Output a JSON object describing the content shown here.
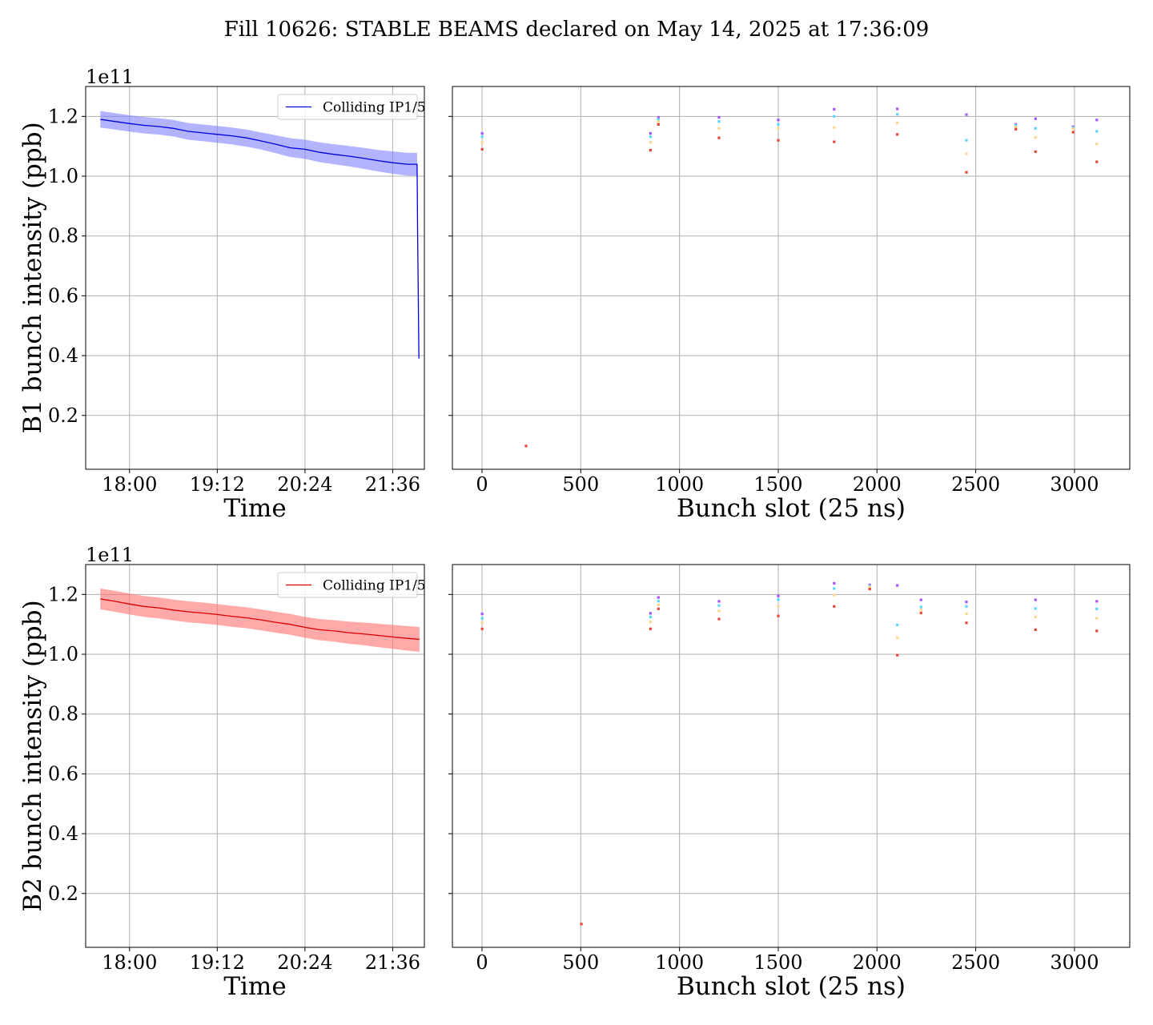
{
  "title": "Fill 10626: STABLE BEAMS declared on May 14, 2025 at 17:36:09",
  "colors": {
    "b1": "#0000dd",
    "b1_band": "#8080ff",
    "b2": "#dd0000",
    "b2_band": "#ff7070",
    "grid": "#b0b0b0"
  },
  "chart_data": [
    {
      "type": "line",
      "panel": "B1 vs time",
      "ylabel": "B1 bunch intensity (ppb)",
      "xlabel": "Time",
      "y_offset_label": "1e11",
      "y_scale": 100000000000.0,
      "grid": true,
      "legend_position": "upper-right",
      "x_unit": "minutes after 17:00",
      "xlim": [
        24,
        302
      ],
      "ylim": [
        0.02,
        1.3
      ],
      "x_ticks": [
        60,
        132,
        204,
        276
      ],
      "x_tick_labels": [
        "18:00",
        "19:12",
        "20:24",
        "21:36"
      ],
      "y_ticks": [
        0.2,
        0.4,
        0.6,
        0.8,
        1.0,
        1.2
      ],
      "y_tick_labels": [
        "0.2",
        "0.4",
        "0.6",
        "0.8",
        "1.0",
        "1.2"
      ],
      "series": [
        {
          "name": "Colliding IP1/5",
          "color": "#0000dd",
          "x": [
            36,
            48,
            60,
            72,
            84,
            96,
            108,
            120,
            132,
            144,
            156,
            168,
            180,
            192,
            204,
            216,
            228,
            240,
            252,
            264,
            276,
            288,
            296,
            296.5,
            297.5
          ],
          "y": [
            1.19,
            1.183,
            1.176,
            1.17,
            1.166,
            1.16,
            1.15,
            1.145,
            1.14,
            1.135,
            1.128,
            1.118,
            1.107,
            1.095,
            1.09,
            1.08,
            1.073,
            1.067,
            1.06,
            1.052,
            1.045,
            1.04,
            1.04,
            0.8,
            0.39
          ],
          "upper": [
            1.218,
            1.211,
            1.204,
            1.198,
            1.194,
            1.188,
            1.178,
            1.173,
            1.168,
            1.163,
            1.156,
            1.146,
            1.137,
            1.127,
            1.122,
            1.113,
            1.107,
            1.101,
            1.095,
            1.088,
            1.083,
            1.078,
            1.078,
            0.82,
            0.4
          ],
          "lower": [
            1.163,
            1.156,
            1.149,
            1.143,
            1.139,
            1.133,
            1.122,
            1.117,
            1.112,
            1.106,
            1.099,
            1.089,
            1.077,
            1.064,
            1.058,
            1.047,
            1.04,
            1.033,
            1.025,
            1.016,
            1.008,
            1.002,
            1.002,
            0.78,
            0.38
          ]
        }
      ]
    },
    {
      "type": "scatter",
      "panel": "B1 vs bunch slot",
      "xlabel": "Bunch slot (25 ns)",
      "grid": true,
      "xlim": [
        -150,
        3280
      ],
      "ylim": [
        0.02,
        1.3
      ],
      "x_ticks": [
        0,
        500,
        1000,
        1500,
        2000,
        2500,
        3000
      ],
      "x_tick_labels": [
        "0",
        "500",
        "1000",
        "1500",
        "2000",
        "2500",
        "3000"
      ],
      "y_ticks": [
        0.2,
        0.4,
        0.6,
        0.8,
        1.0,
        1.2
      ],
      "series": [
        {
          "color": "#a855f7",
          "x": [
            1,
            853,
            893,
            1200,
            1500,
            1783,
            2103,
            2453,
            2703,
            2803,
            2993,
            3113
          ],
          "y": [
            1.143,
            1.143,
            1.197,
            1.197,
            1.188,
            1.224,
            1.225,
            1.206,
            1.173,
            1.192,
            1.165,
            1.188
          ]
        },
        {
          "color": "#5ad6ff",
          "x": [
            1,
            853,
            893,
            1200,
            1500,
            1783,
            2103,
            2453,
            2703,
            2803,
            2993,
            3113
          ],
          "y": [
            1.132,
            1.132,
            1.19,
            1.183,
            1.173,
            1.2,
            1.207,
            1.12,
            1.17,
            1.16,
            1.162,
            1.15
          ]
        },
        {
          "color": "#ffd58a",
          "x": [
            1,
            853,
            893,
            1200,
            1500,
            1783,
            2103,
            2453,
            2703,
            2803,
            2993,
            3113
          ],
          "y": [
            1.113,
            1.113,
            1.183,
            1.16,
            1.16,
            1.163,
            1.178,
            1.075,
            1.165,
            1.13,
            1.158,
            1.108
          ]
        },
        {
          "color": "#e8483c",
          "x": [
            1,
            853,
            893,
            1200,
            1500,
            1783,
            2103,
            2453,
            2703,
            2803,
            2993,
            3113,
            223
          ],
          "y": [
            1.09,
            1.087,
            1.173,
            1.128,
            1.12,
            1.115,
            1.14,
            1.013,
            1.157,
            1.082,
            1.147,
            1.048,
            0.098
          ]
        }
      ]
    },
    {
      "type": "line",
      "panel": "B2 vs time",
      "ylabel": "B2 bunch intensity (ppb)",
      "xlabel": "Time",
      "y_offset_label": "1e11",
      "y_scale": 100000000000.0,
      "grid": true,
      "legend_position": "upper-right",
      "x_unit": "minutes after 17:00",
      "xlim": [
        24,
        302
      ],
      "ylim": [
        0.02,
        1.3
      ],
      "x_ticks": [
        60,
        132,
        204,
        276
      ],
      "x_tick_labels": [
        "18:00",
        "19:12",
        "20:24",
        "21:36"
      ],
      "y_ticks": [
        0.2,
        0.4,
        0.6,
        0.8,
        1.0,
        1.2
      ],
      "y_tick_labels": [
        "0.2",
        "0.4",
        "0.6",
        "0.8",
        "1.0",
        "1.2"
      ],
      "series": [
        {
          "name": "Colliding IP1/5",
          "color": "#dd0000",
          "x": [
            36,
            48,
            60,
            72,
            84,
            96,
            108,
            120,
            132,
            144,
            156,
            168,
            180,
            192,
            204,
            216,
            228,
            240,
            252,
            264,
            276,
            288,
            298
          ],
          "y": [
            1.185,
            1.177,
            1.168,
            1.16,
            1.155,
            1.148,
            1.142,
            1.138,
            1.133,
            1.127,
            1.122,
            1.115,
            1.107,
            1.1,
            1.09,
            1.082,
            1.078,
            1.072,
            1.068,
            1.063,
            1.058,
            1.053,
            1.05
          ],
          "upper": [
            1.22,
            1.212,
            1.203,
            1.195,
            1.19,
            1.183,
            1.177,
            1.173,
            1.168,
            1.162,
            1.157,
            1.15,
            1.142,
            1.135,
            1.125,
            1.118,
            1.114,
            1.109,
            1.106,
            1.102,
            1.098,
            1.094,
            1.091
          ],
          "lower": [
            1.15,
            1.142,
            1.133,
            1.125,
            1.12,
            1.113,
            1.107,
            1.103,
            1.098,
            1.092,
            1.087,
            1.08,
            1.072,
            1.065,
            1.055,
            1.047,
            1.042,
            1.035,
            1.03,
            1.024,
            1.018,
            1.012,
            1.008
          ]
        }
      ]
    },
    {
      "type": "scatter",
      "panel": "B2 vs bunch slot",
      "xlabel": "Bunch slot (25 ns)",
      "grid": true,
      "xlim": [
        -150,
        3280
      ],
      "ylim": [
        0.02,
        1.3
      ],
      "x_ticks": [
        0,
        500,
        1000,
        1500,
        2000,
        2500,
        3000
      ],
      "x_tick_labels": [
        "0",
        "500",
        "1000",
        "1500",
        "2000",
        "2500",
        "3000"
      ],
      "y_ticks": [
        0.2,
        0.4,
        0.6,
        0.8,
        1.0,
        1.2
      ],
      "series": [
        {
          "color": "#a855f7",
          "x": [
            1,
            853,
            893,
            1200,
            1500,
            1783,
            1963,
            2103,
            2223,
            2453,
            2803,
            3113
          ],
          "y": [
            1.135,
            1.137,
            1.19,
            1.177,
            1.195,
            1.237,
            1.232,
            1.23,
            1.182,
            1.175,
            1.182,
            1.177
          ]
        },
        {
          "color": "#5ad6ff",
          "x": [
            1,
            853,
            893,
            1200,
            1500,
            1783,
            1963,
            2103,
            2223,
            2453,
            2803,
            3113
          ],
          "y": [
            1.12,
            1.125,
            1.178,
            1.163,
            1.183,
            1.22,
            1.228,
            1.098,
            1.158,
            1.16,
            1.153,
            1.152
          ]
        },
        {
          "color": "#ffd58a",
          "x": [
            1,
            853,
            893,
            1200,
            1500,
            1783,
            1963,
            2103,
            2223,
            2453,
            2803,
            3113
          ],
          "y": [
            1.105,
            1.108,
            1.165,
            1.145,
            1.16,
            1.198,
            1.225,
            1.055,
            1.148,
            1.135,
            1.125,
            1.12
          ]
        },
        {
          "color": "#e8483c",
          "x": [
            1,
            853,
            893,
            1200,
            1500,
            1783,
            1963,
            2103,
            2223,
            2453,
            2803,
            3113,
            503
          ],
          "y": [
            1.085,
            1.085,
            1.152,
            1.118,
            1.128,
            1.16,
            1.218,
            0.997,
            1.138,
            1.105,
            1.082,
            1.078,
            0.098
          ]
        }
      ]
    }
  ]
}
